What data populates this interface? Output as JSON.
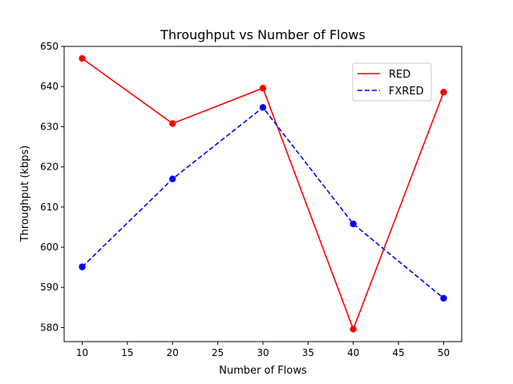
{
  "chart_data": {
    "type": "line",
    "title": "Throughput vs Number of Flows",
    "xlabel": "Number of Flows",
    "ylabel": "Throughput (kbps)",
    "x": [
      10,
      20,
      30,
      40,
      50
    ],
    "xlim": [
      8,
      52
    ],
    "ylim": [
      576.5,
      650
    ],
    "xticks": [
      10,
      15,
      20,
      25,
      30,
      35,
      40,
      45,
      50
    ],
    "yticks": [
      580,
      590,
      600,
      610,
      620,
      630,
      640,
      650
    ],
    "grid": false,
    "legend_position": "upper-right",
    "series": [
      {
        "name": "RED",
        "values": [
          647,
          630.8,
          639.6,
          579.6,
          638.6
        ],
        "color": "#ff0000",
        "style": "solid",
        "marker": "circle"
      },
      {
        "name": "FXRED",
        "values": [
          595.1,
          617,
          634.8,
          605.8,
          587.3
        ],
        "color": "#0000ff",
        "style": "dashed",
        "marker": "circle"
      }
    ]
  }
}
